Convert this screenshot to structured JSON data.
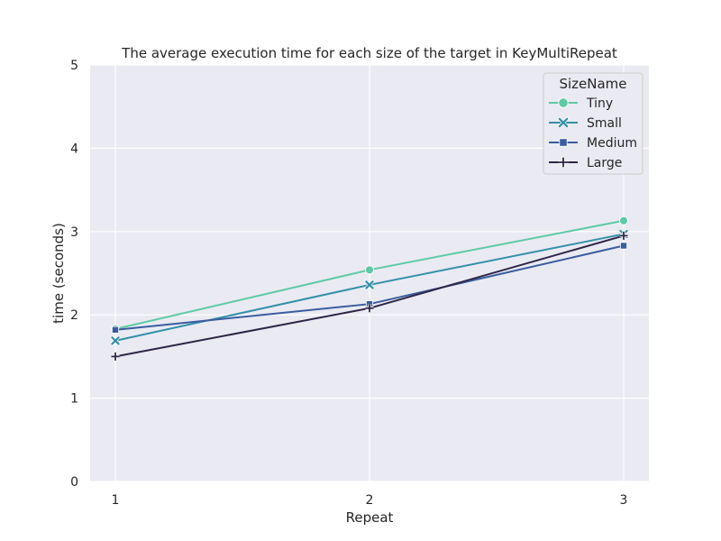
{
  "chart_data": {
    "type": "line",
    "title": "The average execution time for each size of the target in KeyMultiRepeat",
    "xlabel": "Repeat",
    "ylabel": "time (seconds)",
    "x": [
      1,
      2,
      3
    ],
    "xticks": [
      "1",
      "2",
      "3"
    ],
    "yticks": [
      "0",
      "1",
      "2",
      "3",
      "4",
      "5"
    ],
    "ylim": [
      0,
      5
    ],
    "grid": true,
    "legend": {
      "title": "SizeName",
      "placement": "top-right"
    },
    "series": [
      {
        "name": "Tiny",
        "values": [
          1.83,
          2.54,
          3.13
        ],
        "color": "#5ecaa5",
        "marker": "circle"
      },
      {
        "name": "Small",
        "values": [
          1.69,
          2.36,
          2.97
        ],
        "color": "#3490a9",
        "marker": "x"
      },
      {
        "name": "Medium",
        "values": [
          1.82,
          2.13,
          2.83
        ],
        "color": "#3a5da0",
        "marker": "square"
      },
      {
        "name": "Large",
        "values": [
          1.5,
          2.08,
          2.95
        ],
        "color": "#2e2647",
        "marker": "plus"
      }
    ],
    "colors": {
      "plot_background": "#eaeaf2",
      "grid": "#ffffff"
    }
  }
}
